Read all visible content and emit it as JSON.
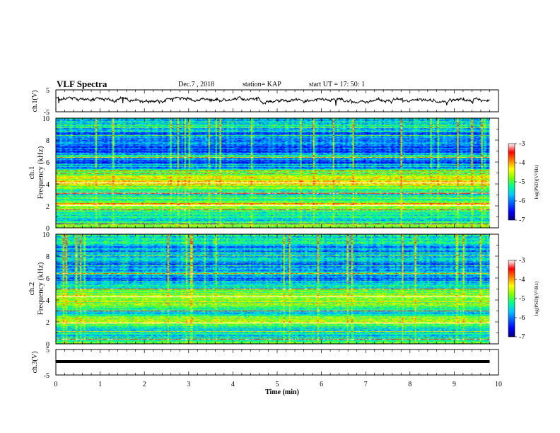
{
  "header": {
    "title": "VLF Spectra",
    "date": "Dec.7 , 2018",
    "station": "station= KAP",
    "start": "start UT =  17: 50: 1"
  },
  "colors": {
    "background": "#ffffff",
    "axes": "#000000",
    "trace": "#000000",
    "colormap": [
      "#00007a",
      "#0000ff",
      "#0060ff",
      "#00c8ff",
      "#00ff90",
      "#80ff00",
      "#ffff00",
      "#ff8000",
      "#ff0000",
      "#ffffff"
    ]
  },
  "chart_data": [
    {
      "type": "line",
      "panel": "ch1_waveform",
      "ylabel": "ch.1(V)",
      "ylim": [
        -5,
        5
      ],
      "yticks": [
        -5,
        5
      ],
      "ytick_labels": [
        "-5",
        "5"
      ],
      "xlim": [
        0,
        10
      ],
      "x_unit": "min",
      "series": [
        {
          "x": [
            0,
            0.5,
            1,
            1.5,
            2,
            2.5,
            3,
            3.5,
            4,
            4.5,
            5,
            5.5,
            6,
            6.5,
            7,
            7.5,
            8,
            8.5,
            9,
            9.5,
            9.8
          ],
          "values": [
            1.2,
            0.5,
            0.4,
            1.3,
            -0.6,
            0.5,
            0.8,
            0.4,
            0.3,
            0.5,
            -0.4,
            0.2,
            0.4,
            0.3,
            -0.5,
            0.3,
            0.5,
            0.4,
            -0.3,
            0.4,
            0.2
          ]
        }
      ]
    },
    {
      "type": "heatmap",
      "panel": "ch1_spectrogram",
      "ylabel": "ch.1\nFrequency (kHz)",
      "ylim": [
        0,
        10
      ],
      "yticks": [
        0,
        2,
        4,
        6,
        8,
        10
      ],
      "ytick_labels": [
        "0",
        "2",
        "4",
        "6",
        "8",
        "10"
      ],
      "xlim": [
        0,
        10
      ],
      "x_extent": [
        0,
        9.8
      ],
      "z_range": [
        -7,
        -3
      ],
      "colorbar_label": "log(PSD)(V²/Hz)",
      "colorbar_ticks": [
        -3,
        -4,
        -5,
        -6,
        -7
      ],
      "colorbar_tick_labels": [
        "-3",
        "-4",
        "-5",
        "-6",
        "-7"
      ],
      "band_profile": {
        "freq_khz": [
          0,
          0.5,
          1,
          1.5,
          2,
          2.5,
          3,
          3.5,
          4,
          4.5,
          5,
          5.5,
          6,
          6.5,
          7,
          7.5,
          8,
          8.5,
          9,
          9.5,
          10
        ],
        "log_psd": [
          -4.6,
          -5.3,
          -5.5,
          -5.2,
          -4.3,
          -5.0,
          -5.4,
          -4.8,
          -4.5,
          -4.6,
          -5.0,
          -5.8,
          -6.1,
          -5.6,
          -6.3,
          -6.1,
          -5.8,
          -6.1,
          -5.7,
          -5.4,
          -5.6
        ]
      },
      "strong_lines_khz": [
        0.3,
        2.0,
        3.1,
        4.1,
        5.2,
        6.4
      ]
    },
    {
      "type": "heatmap",
      "panel": "ch2_spectrogram",
      "ylabel": "ch.2\nFrequency (kHz)",
      "ylim": [
        0,
        10
      ],
      "yticks": [
        0,
        2,
        4,
        6,
        8,
        10
      ],
      "ytick_labels": [
        "0",
        "2",
        "4",
        "6",
        "8",
        "10"
      ],
      "xlim": [
        0,
        10
      ],
      "x_extent": [
        0,
        9.8
      ],
      "z_range": [
        -7,
        -3
      ],
      "colorbar_label": "log(PSD)(V²/Hz)",
      "colorbar_ticks": [
        -3,
        -4,
        -5,
        -6,
        -7
      ],
      "colorbar_tick_labels": [
        "-3",
        "-4",
        "-5",
        "-6",
        "-7"
      ],
      "band_profile": {
        "freq_khz": [
          0,
          0.5,
          1,
          1.5,
          2,
          2.5,
          3,
          3.5,
          4,
          4.5,
          5,
          5.5,
          6,
          6.5,
          7,
          7.5,
          8,
          8.5,
          9,
          9.5,
          10
        ],
        "log_psd": [
          -4.8,
          -5.4,
          -5.6,
          -5.4,
          -4.4,
          -5.2,
          -5.5,
          -4.9,
          -4.6,
          -4.7,
          -5.1,
          -5.9,
          -6.2,
          -5.5,
          -6.2,
          -6.0,
          -5.6,
          -6.0,
          -5.6,
          -5.2,
          -5.4
        ]
      },
      "strong_lines_khz": [
        0.4,
        1.9,
        3.0,
        4.3,
        5.0,
        6.4
      ]
    },
    {
      "type": "line",
      "panel": "ch3_waveform",
      "ylabel": "ch.3(V)",
      "ylim": [
        -5,
        5
      ],
      "yticks": [
        -5,
        5
      ],
      "ytick_labels": [
        "-5",
        "5"
      ],
      "xlim": [
        0,
        10
      ],
      "xlabel": "Time (min)",
      "xticks": [
        0,
        1,
        2,
        3,
        4,
        5,
        6,
        7,
        8,
        9,
        10
      ],
      "xtick_labels": [
        "0",
        "1",
        "2",
        "3",
        "4",
        "5",
        "6",
        "7",
        "8",
        "9",
        "10"
      ],
      "series": [
        {
          "x": [
            0,
            9.8
          ],
          "values": [
            0,
            0
          ]
        }
      ]
    }
  ]
}
